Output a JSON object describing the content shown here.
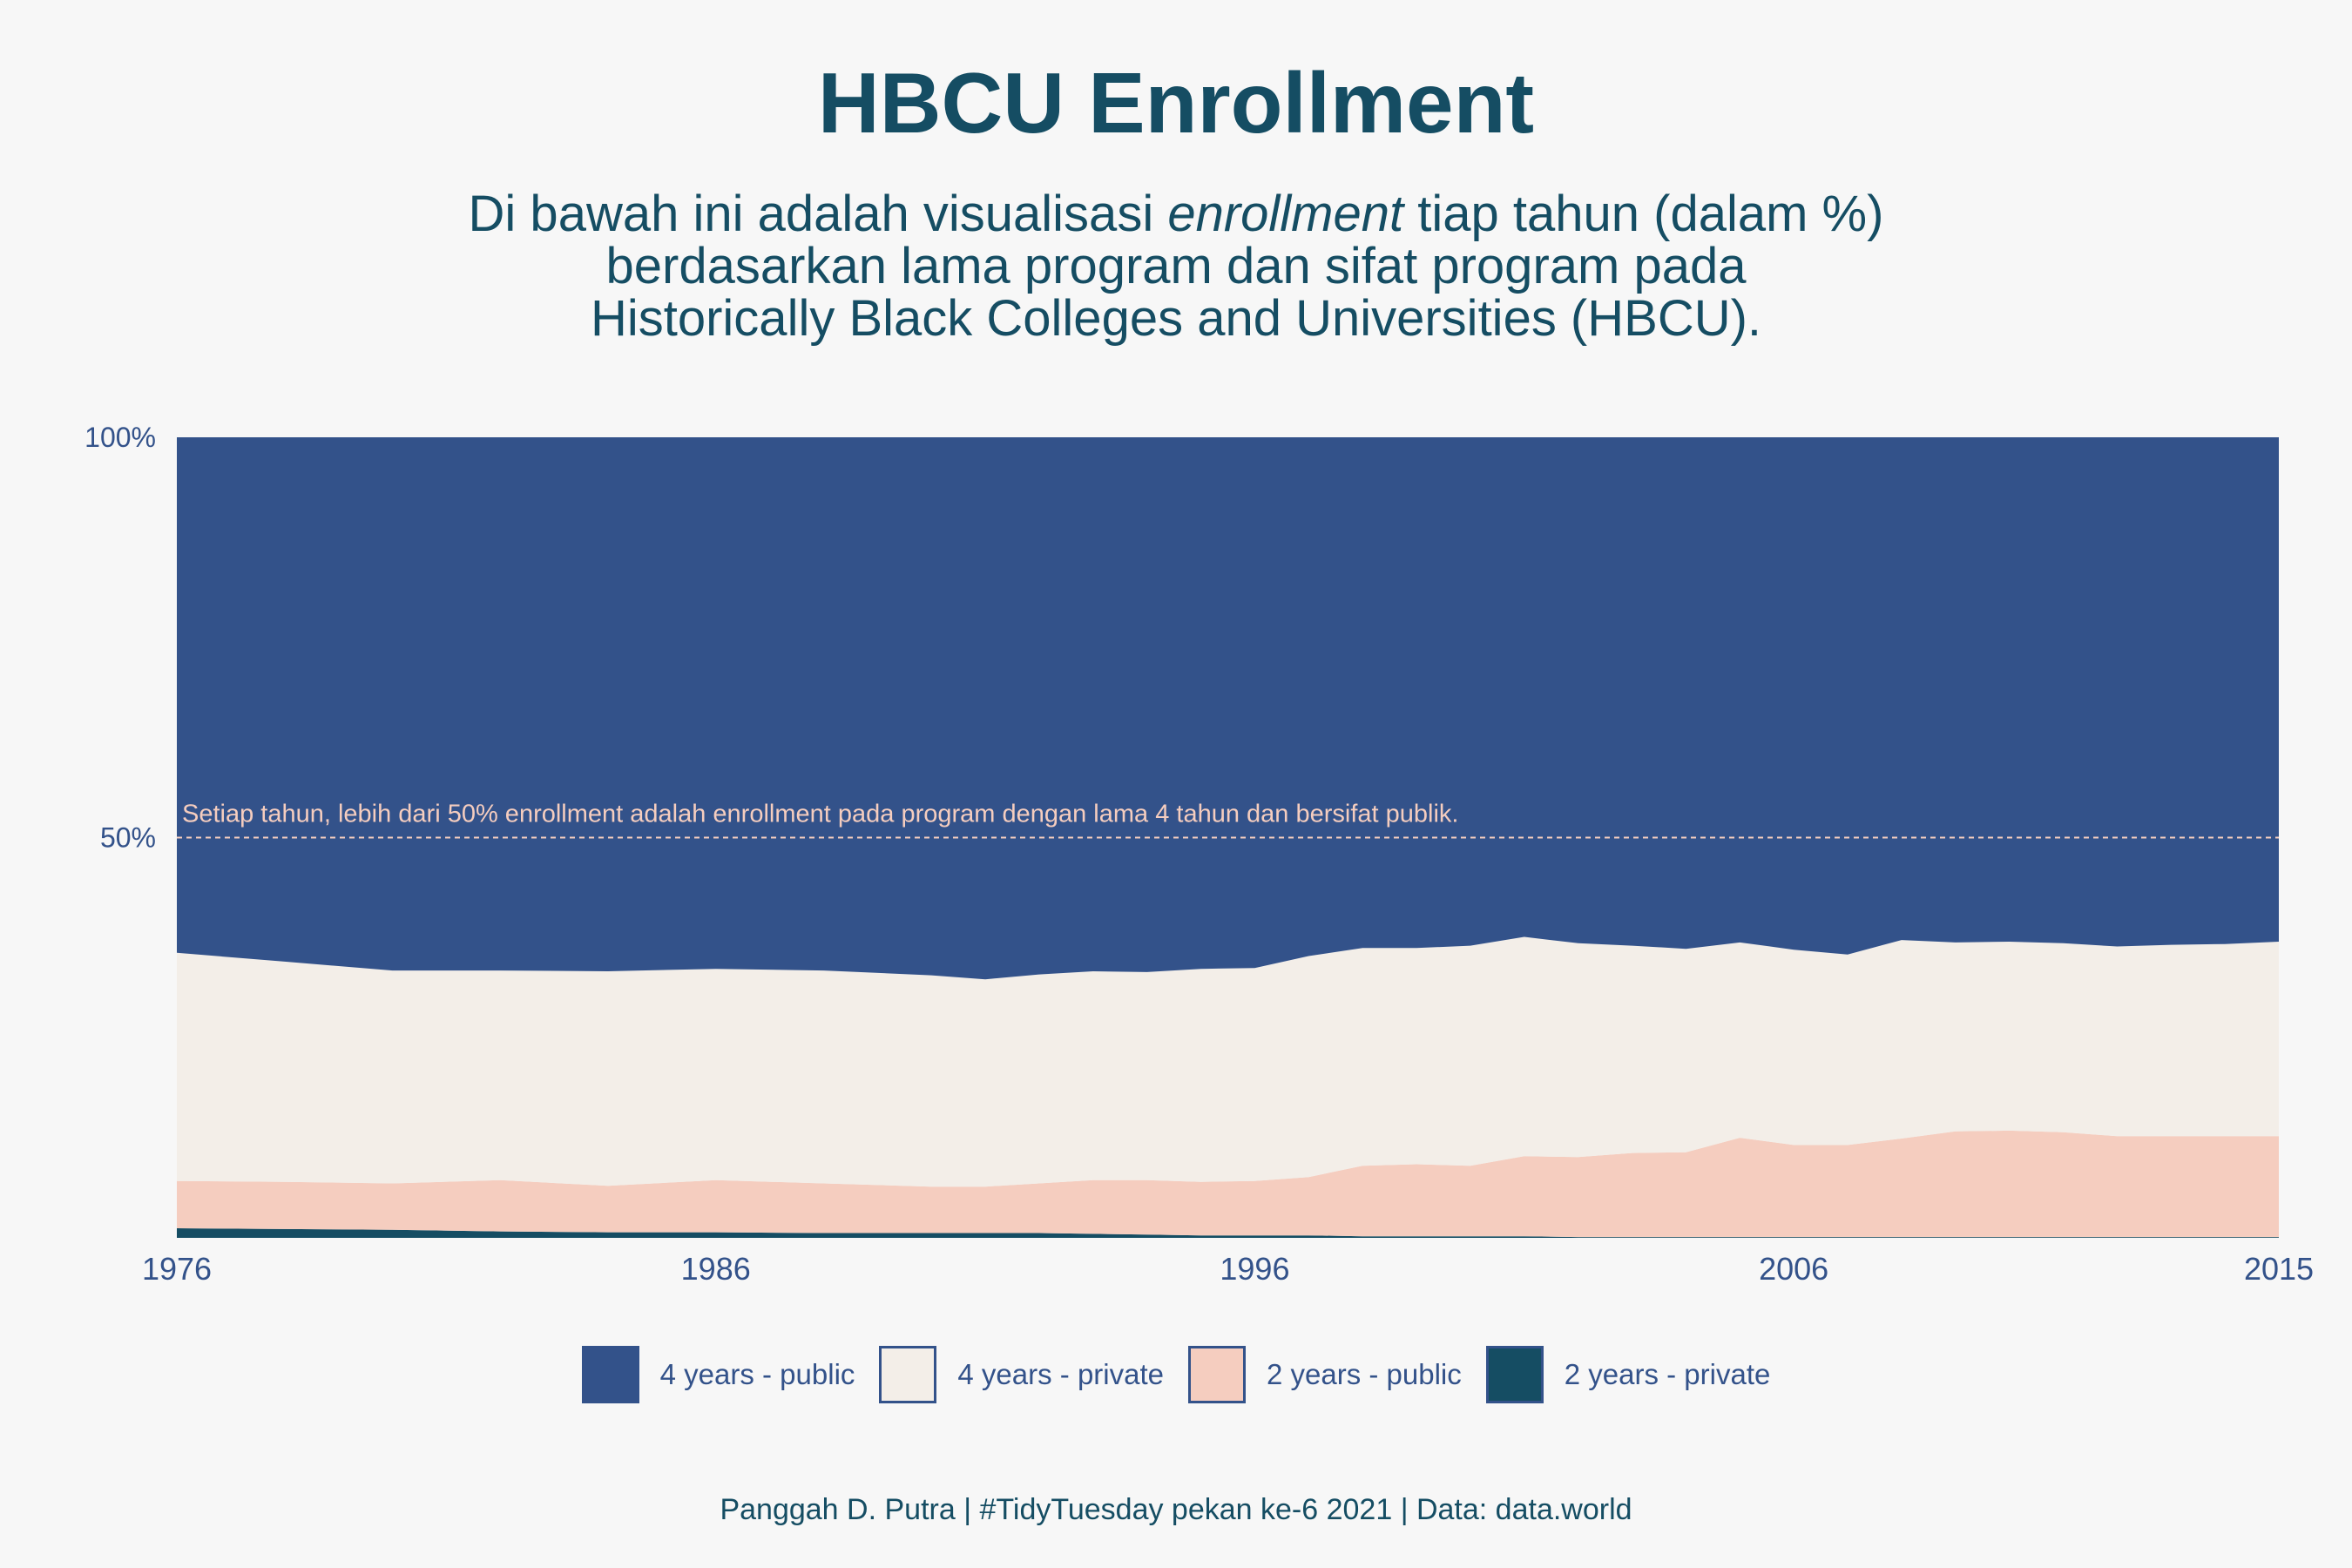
{
  "title": "HBCU Enrollment",
  "subtitle": {
    "line1_pre": "Di bawah ini adalah visualisasi ",
    "line1_em": "enrollment",
    "line1_post": " tiap tahun (dalam %)",
    "line2": "berdasarkan lama program dan sifat program pada",
    "line3": "Historically Black Colleges and Universities (HBCU)."
  },
  "caption": "Panggah D. Putra | #TidyTuesday pekan ke-6 2021 | Data: data.world",
  "annotation": "Setiap tahun,  lebih dari 50% enrollment adalah enrollment pada program dengan  lama 4 tahun dan bersifat publik.",
  "colors": {
    "four_public": "#33528a",
    "four_private": "#f3eee8",
    "two_public": "#f5cdbf",
    "two_private": "#154d63",
    "background": "#f7f7f7",
    "text": "#154d63",
    "axis_text": "#33528a",
    "annotation": "#f5cdbf"
  },
  "chart_data": {
    "type": "area",
    "stacked": true,
    "normalized": true,
    "x": [
      1976,
      1978,
      1980,
      1982,
      1984,
      1986,
      1988,
      1990,
      1991,
      1992,
      1993,
      1994,
      1995,
      1996,
      1997,
      1998,
      1999,
      2000,
      2001,
      2002,
      2003,
      2004,
      2005,
      2006,
      2007,
      2008,
      2009,
      2010,
      2011,
      2012,
      2013,
      2014,
      2015
    ],
    "series": [
      {
        "name": "2 years - private",
        "key": "two_private",
        "values": [
          1.2,
          1.1,
          1.0,
          0.8,
          0.7,
          0.7,
          0.6,
          0.6,
          0.6,
          0.6,
          0.5,
          0.4,
          0.3,
          0.3,
          0.3,
          0.2,
          0.2,
          0.2,
          0.2,
          0.1,
          0.1,
          0.1,
          0.1,
          0.1,
          0.1,
          0.1,
          0.1,
          0.1,
          0.1,
          0.1,
          0.1,
          0.1,
          0.1
        ]
      },
      {
        "name": "2 years - public",
        "key": "two_public",
        "values": [
          5.9,
          5.9,
          5.8,
          6.4,
          5.8,
          6.5,
          6.2,
          5.8,
          5.8,
          6.2,
          6.7,
          6.8,
          6.7,
          6.8,
          7.3,
          8.8,
          9.0,
          8.8,
          10.0,
          10.0,
          10.5,
          10.6,
          12.4,
          11.5,
          11.5,
          12.3,
          13.2,
          13.3,
          13.1,
          12.6,
          12.6,
          12.6,
          12.6
        ]
      },
      {
        "name": "4 years - private",
        "key": "four_private",
        "values": [
          28.5,
          27.5,
          26.6,
          26.2,
          26.8,
          26.4,
          26.6,
          26.4,
          25.9,
          26.1,
          26.1,
          26.0,
          26.6,
          26.6,
          27.6,
          27.2,
          27.0,
          27.5,
          27.4,
          26.7,
          25.9,
          25.4,
          24.4,
          24.4,
          23.8,
          24.8,
          23.6,
          23.6,
          23.6,
          23.7,
          23.9,
          24.0,
          24.3
        ]
      },
      {
        "name": "4 years - public",
        "key": "four_public",
        "values": [
          64.4,
          65.5,
          66.6,
          66.6,
          66.7,
          66.4,
          66.6,
          67.2,
          67.7,
          67.1,
          66.7,
          66.8,
          66.4,
          66.3,
          64.8,
          63.8,
          63.8,
          63.5,
          62.4,
          63.2,
          63.5,
          63.9,
          63.1,
          64.0,
          64.6,
          62.8,
          63.1,
          63.0,
          63.2,
          63.6,
          63.4,
          63.3,
          63.0
        ]
      }
    ],
    "legend_order": [
      "four_public",
      "four_private",
      "two_public",
      "two_private"
    ],
    "xlim": [
      1976,
      2015
    ],
    "ylim": [
      0,
      100
    ],
    "x_ticks": [
      1976,
      1986,
      1996,
      2006,
      2015
    ],
    "x_tick_labels": [
      "1976",
      "1986",
      "1996",
      "2006",
      "2015"
    ],
    "y_ticks": [
      50,
      100
    ],
    "y_tick_labels": [
      "50%",
      "100%"
    ],
    "reference_line": {
      "y": 50,
      "style": "dashed"
    },
    "grid": false,
    "legend_position": "bottom"
  }
}
